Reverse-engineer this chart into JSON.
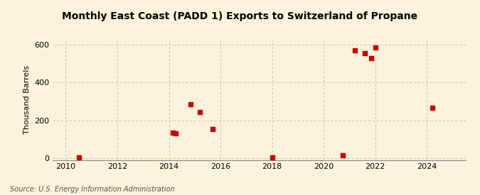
{
  "title": "Monthly East Coast (PADD 1) Exports to Switzerland of Propane",
  "ylabel": "Thousand Barrels",
  "source": "Source: U.S. Energy Information Administration",
  "background_color": "#fdf3dc",
  "plot_background_color": "#fdf3dc",
  "scatter_color": "#cc0000",
  "marker": "s",
  "marker_size": 18,
  "xlim": [
    2009.5,
    2025.5
  ],
  "ylim": [
    -10,
    630
  ],
  "xticks": [
    2010,
    2012,
    2014,
    2016,
    2018,
    2020,
    2022,
    2024
  ],
  "yticks": [
    0,
    200,
    400,
    600
  ],
  "grid_color": "#bbbbbb",
  "grid_style": "--",
  "data_x": [
    2010.5,
    2014.15,
    2014.25,
    2014.85,
    2015.2,
    2015.7,
    2018.0,
    2020.75,
    2021.2,
    2021.6,
    2021.85,
    2022.0,
    2024.2
  ],
  "data_y": [
    2,
    135,
    130,
    285,
    245,
    155,
    2,
    15,
    570,
    555,
    530,
    585,
    265
  ],
  "title_fontsize": 10,
  "ylabel_fontsize": 8,
  "tick_fontsize": 8,
  "source_fontsize": 7
}
